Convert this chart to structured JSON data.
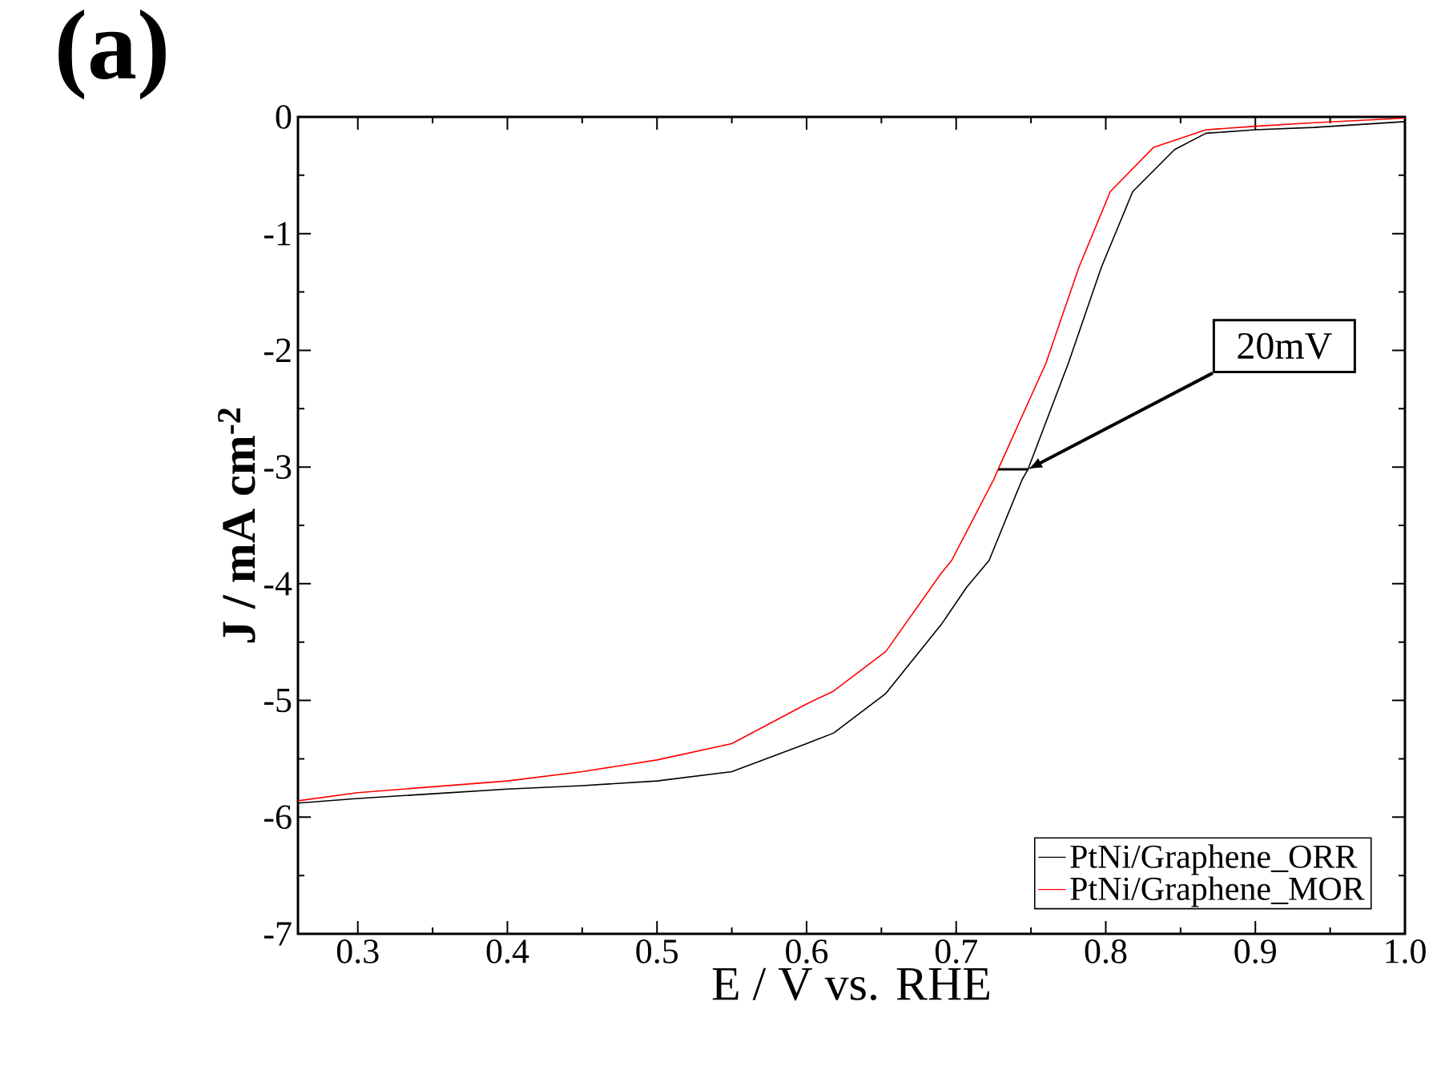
{
  "chart_data": {
    "type": "line",
    "title": "(a)",
    "xlabel": "E / V vs. RHE",
    "ylabel": "J / mA cm$^{-2}$",
    "xlim": [
      0.26,
      1.0
    ],
    "ylim": [
      -7,
      0
    ],
    "xticks": [
      0.3,
      0.4,
      0.5,
      0.6,
      0.7,
      0.8,
      0.9,
      {
        "value": 1.0,
        "label": "1.0"
      }
    ],
    "yticks": [
      0,
      -1,
      -2,
      -3,
      -4,
      -5,
      -6,
      -7
    ],
    "legend": "bottom right",
    "marker": "none",
    "line_style": "solid",
    "annotations": [
      {
        "text": "20mV",
        "x": 0.748,
        "y": -3.02
      }
    ],
    "series": [
      {
        "name": "PtNi/Graphene_ORR",
        "color": "#000000",
        "x": [
          0.26,
          0.3,
          0.35,
          0.4,
          0.45,
          0.5,
          0.55,
          0.6,
          0.618,
          0.653,
          0.69,
          0.707,
          0.722,
          0.744,
          0.748,
          0.775,
          0.797,
          0.818,
          0.846,
          0.867,
          0.9,
          0.939,
          1.0
        ],
        "values": [
          -5.88,
          -5.84,
          -5.8,
          -5.76,
          -5.73,
          -5.69,
          -5.61,
          -5.37,
          -5.28,
          -4.94,
          -4.35,
          -4.03,
          -3.8,
          -3.11,
          -3.02,
          -2.11,
          -1.29,
          -0.64,
          -0.28,
          -0.14,
          -0.11,
          -0.09,
          -0.04
        ]
      },
      {
        "type": "line",
        "color": "#000000",
        "x": [
          0.728,
          0.748
        ],
        "values": [
          -3.02,
          -3.02
        ]
      },
      {
        "name": "PtNi/Graphene_MOR",
        "color": "#ff0000",
        "x": [
          0.26,
          0.3,
          0.35,
          0.4,
          0.45,
          0.5,
          0.55,
          0.6,
          0.618,
          0.653,
          0.69,
          0.697,
          0.725,
          0.728,
          0.76,
          0.782,
          0.803,
          0.832,
          0.867,
          0.9,
          0.939,
          1.0
        ],
        "values": [
          -5.86,
          -5.79,
          -5.74,
          -5.69,
          -5.61,
          -5.51,
          -5.37,
          -5.03,
          -4.92,
          -4.58,
          -3.91,
          -3.8,
          -3.11,
          -3.02,
          -2.11,
          -1.29,
          -0.64,
          -0.26,
          -0.11,
          -0.08,
          -0.05,
          -0.01
        ]
      }
    ]
  }
}
